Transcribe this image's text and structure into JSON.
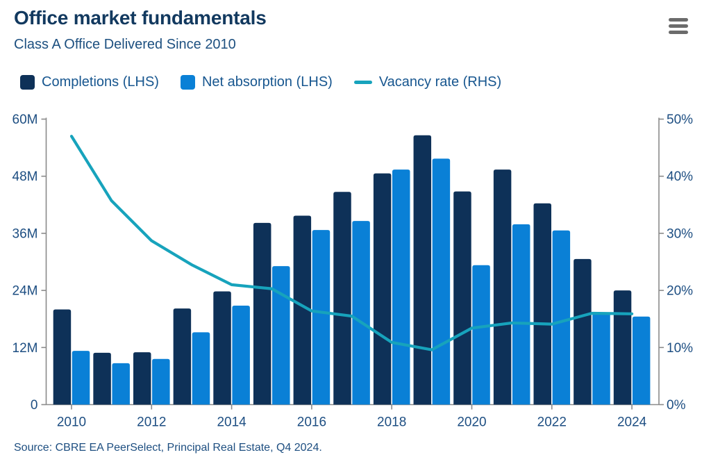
{
  "header": {
    "title": "Office market fundamentals",
    "subtitle": "Class A Office Delivered Since 2010"
  },
  "menu": {
    "icon": "hamburger-menu-icon"
  },
  "footer": {
    "source": "Source: CBRE EA PeerSelect, Principal Real Estate, Q4 2024."
  },
  "colors": {
    "title_text": "#12395F",
    "subtitle_text": "#1D5080",
    "legend_text": "#17568F",
    "axis_text": "#1D4E82",
    "axis_line": "#8A8A8A",
    "menu_icon": "#6B6B6B",
    "background": "#FFFFFF"
  },
  "chart_data": {
    "type": "bar",
    "subtype": "grouped-bars-with-line",
    "categories": [
      2010,
      2011,
      2012,
      2013,
      2014,
      2015,
      2016,
      2017,
      2018,
      2019,
      2020,
      2021,
      2022,
      2023,
      2024
    ],
    "series": [
      {
        "name": "Completions (LHS)",
        "type": "bar",
        "axis": "left",
        "color": "#0E3158",
        "values": [
          20.0,
          10.9,
          11.0,
          20.2,
          23.8,
          38.2,
          39.7,
          44.7,
          48.6,
          56.6,
          44.8,
          49.4,
          42.3,
          30.6,
          24.0
        ]
      },
      {
        "name": "Net absorption (LHS)",
        "type": "bar",
        "axis": "left",
        "color": "#0A80D6",
        "values": [
          11.3,
          8.7,
          9.6,
          15.2,
          20.8,
          29.1,
          36.7,
          38.6,
          49.4,
          51.7,
          29.3,
          37.9,
          36.6,
          19.2,
          18.5
        ]
      },
      {
        "name": "Vacancy rate (RHS)",
        "type": "line",
        "axis": "right",
        "color": "#17A3BC",
        "values": [
          47.0,
          35.7,
          28.7,
          24.5,
          21.0,
          20.3,
          16.4,
          15.5,
          10.9,
          9.6,
          13.4,
          14.3,
          14.1,
          16.0,
          15.9
        ]
      }
    ],
    "left_axis": {
      "min": 0,
      "max": 60,
      "unit": "M",
      "ticks": [
        "0",
        "12M",
        "24M",
        "36M",
        "48M",
        "60M"
      ]
    },
    "right_axis": {
      "min": 0,
      "max": 50,
      "unit": "%",
      "ticks": [
        "0%",
        "10%",
        "20%",
        "30%",
        "40%",
        "50%"
      ]
    },
    "x_tick_labels": [
      "2010",
      "2012",
      "2014",
      "2016",
      "2018",
      "2020",
      "2022",
      "2024"
    ],
    "grid": false,
    "legend_position": "top-left"
  }
}
